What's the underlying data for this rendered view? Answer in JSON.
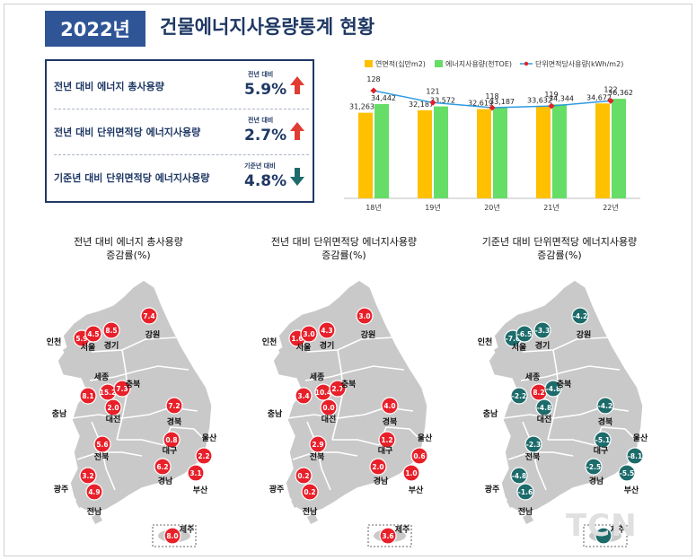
{
  "header": {
    "year": "2022년",
    "title": "건물에너지사용량통계 현황"
  },
  "summary": [
    {
      "label": "전년 대비 에너지 총사용량",
      "small": "전년 대비",
      "value": "5.9%",
      "direction": "up",
      "arrow_color": "#e03c31"
    },
    {
      "label": "전년 대비 단위면적당 에너지사용량",
      "small": "전년 대비",
      "value": "2.7%",
      "direction": "up",
      "arrow_color": "#e03c31"
    },
    {
      "label": "기준년 대비 단위면적당 에너지사용량",
      "small": "기준년 대비",
      "value": "4.8%",
      "direction": "down",
      "arrow_color": "#1d6b6b"
    }
  ],
  "chart_data": {
    "type": "bar",
    "categories": [
      "18년",
      "19년",
      "20년",
      "21년",
      "22년"
    ],
    "series": [
      {
        "name": "연면적(십만m2)",
        "type": "bar",
        "color": "#ffc000",
        "values": [
          31263,
          32187,
          32619,
          33632,
          34672
        ]
      },
      {
        "name": "에너지사용량(천TOE)",
        "type": "bar",
        "color": "#66dd66",
        "values": [
          34442,
          33572,
          33187,
          34344,
          36362
        ]
      },
      {
        "name": "단위면적당사용량(kWh/m2)",
        "type": "line",
        "color": "#2e9be0",
        "marker_color": "#e0202a",
        "values": [
          128,
          121,
          118,
          119,
          122
        ]
      }
    ],
    "bar_value_labels": [
      [
        "31,263",
        "32,187",
        "32,619",
        "33,632",
        "34,672"
      ],
      [
        "34,442",
        "33,572",
        "33,187",
        "34,344",
        "36,362"
      ]
    ],
    "bar_ylim": [
      0,
      40000
    ],
    "line_ylim": [
      100,
      135
    ],
    "grid": false,
    "legend": "top"
  },
  "maps": [
    {
      "title_line1": "전년 대비 에너지 총사용량",
      "title_line2": "증감률(%)",
      "labels": {
        "incheon": "인천",
        "seoul": "서울",
        "gyeonggi": "경기",
        "gangwon": "강원",
        "sejong": "세종",
        "chungbuk": "충북",
        "chungnam": "충남",
        "daejeon": "대전",
        "gyeongbuk": "경북",
        "daegu": "대구",
        "ulsan": "울산",
        "jeonbuk": "전북",
        "gwangju": "광주",
        "gyeongnam": "경남",
        "busan": "부산",
        "jeonnam": "전남",
        "jeju": "제주"
      },
      "values": {
        "incheon": "5.9",
        "seoul": "4.5",
        "gyeonggi": "8.5",
        "gangwon": "7.4",
        "sejong": "15.2",
        "chungbuk": "7.3",
        "chungnam": "8.1",
        "daejeon": "2.0",
        "gyeongbuk": "7.2",
        "daegu": "0.8",
        "ulsan": "2.2",
        "jeonbuk": "5.6",
        "gwangju": "3.2",
        "gyeongnam": "6.2",
        "busan": "3.1",
        "jeonnam": "4.9",
        "jeju": "8.0"
      },
      "colors": {
        "positive": "#e8202a",
        "negative": "#1d6b6b"
      }
    },
    {
      "title_line1": "전년 대비 단위면적당 에너지사용량",
      "title_line2": "증감률(%)",
      "labels": {
        "incheon": "인천",
        "seoul": "서울",
        "gyeonggi": "경기",
        "gangwon": "강원",
        "sejong": "세종",
        "chungbuk": "충북",
        "chungnam": "충남",
        "daejeon": "대전",
        "gyeongbuk": "경북",
        "daegu": "대구",
        "ulsan": "울산",
        "jeonbuk": "전북",
        "gwangju": "광주",
        "gyeongnam": "경남",
        "busan": "부산",
        "jeonnam": "전남",
        "jeju": "제주"
      },
      "values": {
        "incheon": "1.6",
        "seoul": "3.0",
        "gyeonggi": "4.3",
        "gangwon": "3.0",
        "sejong": "10.4",
        "chungbuk": "2.7",
        "chungnam": "3.4",
        "daejeon": "0.0",
        "gyeongbuk": "4.0",
        "daegu": "1.2",
        "ulsan": "0.6",
        "jeonbuk": "2.9",
        "gwangju": "0.2",
        "gyeongnam": "2.0",
        "busan": "1.0",
        "jeonnam": "0.2",
        "jeju": "3.6"
      },
      "colors": {
        "positive": "#e8202a",
        "negative": "#1d6b6b"
      }
    },
    {
      "title_line1": "기준년 대비 단위면적당 에너지사용량",
      "title_line2": "증감률(%)",
      "labels": {
        "incheon": "인천",
        "seoul": "서울",
        "gyeonggi": "경기",
        "gangwon": "강원",
        "sejong": "세종",
        "chungbuk": "충북",
        "chungnam": "충남",
        "daejeon": "대전",
        "gyeongbuk": "경북",
        "daegu": "대구",
        "ulsan": "울산",
        "jeonbuk": "전북",
        "gwangju": "광주",
        "gyeongnam": "경남",
        "busan": "부산",
        "jeonnam": "전남",
        "jeju": "제주"
      },
      "values": {
        "incheon": "-7.6",
        "seoul": "-6.5",
        "gyeonggi": "-3.3",
        "gangwon": "-4.2",
        "sejong": "8.2",
        "chungbuk": "-4.8",
        "chungnam": "-2.2",
        "daejeon": "-4.8",
        "gyeongbuk": "-4.2",
        "daegu": "-5.1",
        "ulsan": "-8.1",
        "jeonbuk": "-2.3",
        "gwangju": "-4.8",
        "gyeongnam": "-2.5",
        "busan": "-5.5",
        "jeonnam": "-1.6",
        "jeju": ""
      },
      "colors": {
        "positive": "#e8202a",
        "negative": "#1d6b6b"
      }
    }
  ],
  "watermark": "TCN"
}
